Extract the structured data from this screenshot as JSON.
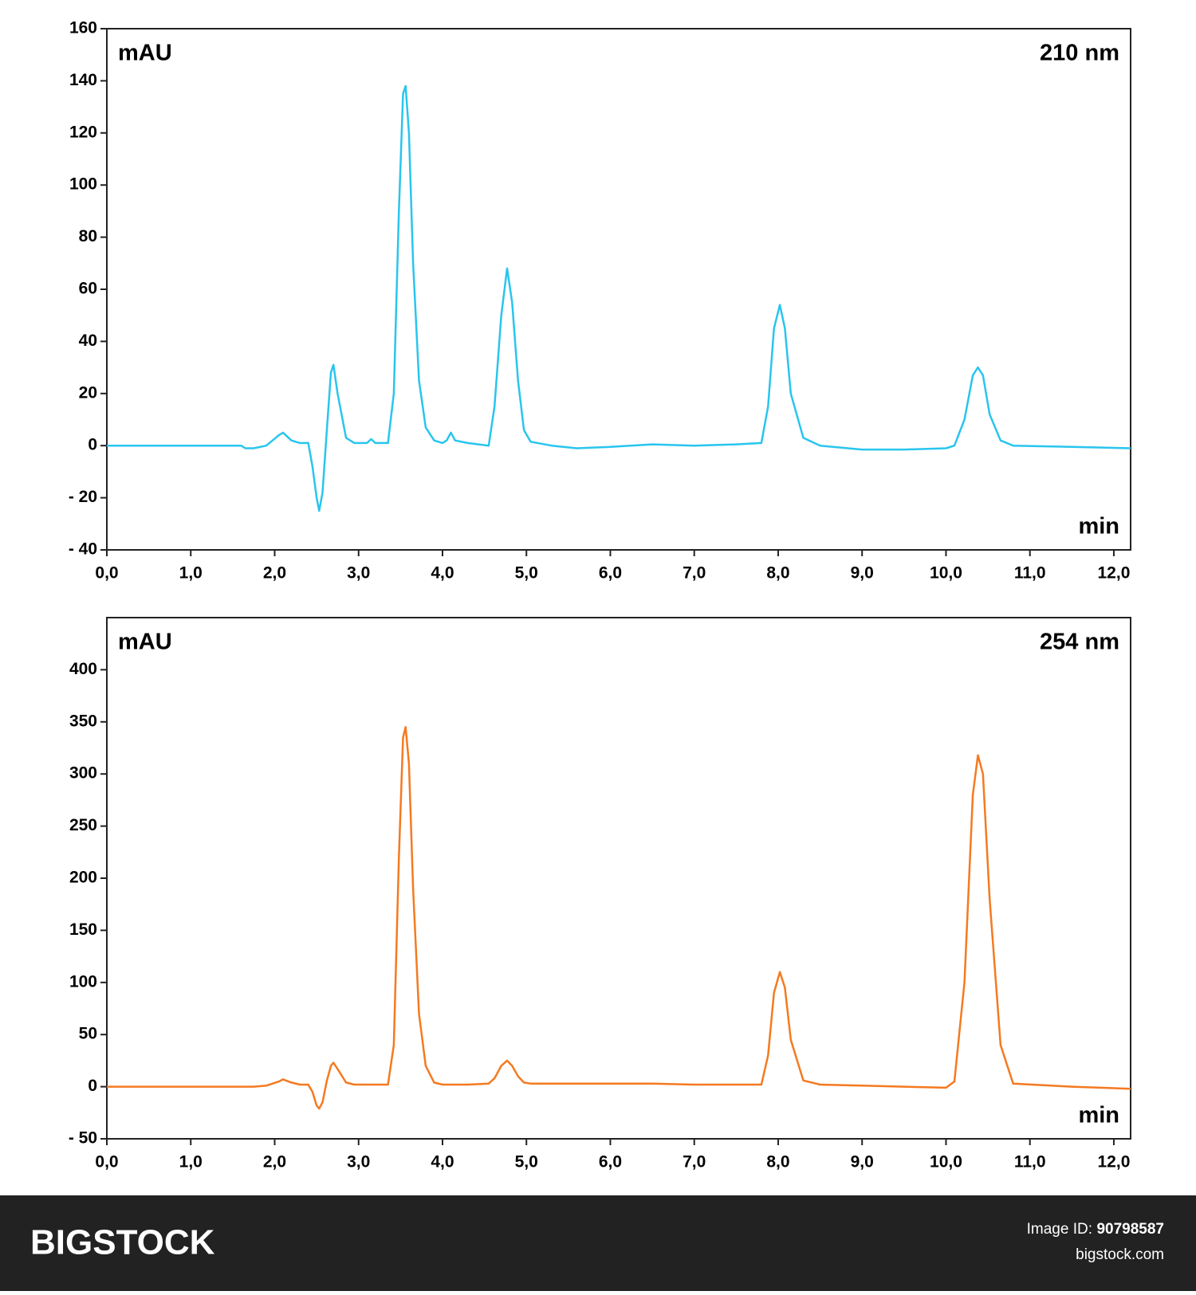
{
  "chart_data": [
    {
      "type": "line",
      "y_label": "mAU",
      "annotation": "210 nm",
      "x_label": "min",
      "color": "#29c5ee",
      "x": [
        0,
        1.6,
        1.65,
        1.75,
        1.9,
        2.05,
        2.1,
        2.2,
        2.3,
        2.4,
        2.45,
        2.5,
        2.53,
        2.57,
        2.62,
        2.67,
        2.7,
        2.75,
        2.85,
        2.95,
        3.1,
        3.15,
        3.2,
        3.35,
        3.42,
        3.48,
        3.53,
        3.56,
        3.6,
        3.65,
        3.72,
        3.8,
        3.9,
        4.0,
        4.05,
        4.1,
        4.15,
        4.3,
        4.55,
        4.62,
        4.7,
        4.77,
        4.83,
        4.9,
        4.97,
        5.05,
        5.3,
        5.6,
        6.0,
        6.5,
        7.0,
        7.5,
        7.8,
        7.88,
        7.95,
        8.02,
        8.08,
        8.15,
        8.3,
        8.5,
        9.0,
        9.5,
        10.0,
        10.1,
        10.22,
        10.32,
        10.38,
        10.44,
        10.52,
        10.65,
        10.8,
        11.5,
        12.2
      ],
      "values": [
        0,
        0,
        -1,
        -1,
        0,
        4,
        5,
        2,
        1,
        1,
        -8,
        -20,
        -25,
        -18,
        5,
        28,
        31,
        20,
        3,
        1,
        1,
        2.5,
        1,
        1,
        20,
        90,
        135,
        138,
        120,
        70,
        25,
        7,
        2,
        1,
        2,
        5,
        2,
        1,
        0,
        15,
        50,
        68,
        55,
        25,
        6,
        1.5,
        0,
        -1,
        -0.5,
        0.5,
        0,
        0.5,
        1,
        15,
        45,
        54,
        45,
        20,
        3,
        0,
        -1.5,
        -1.5,
        -1,
        0,
        10,
        27,
        30,
        27,
        12,
        2,
        0,
        -0.5,
        -1
      ],
      "xlim": [
        0,
        12.2
      ],
      "ylim": [
        -40,
        160
      ],
      "xticks": [
        {
          "value": 0,
          "label": "0,0"
        },
        {
          "value": 1,
          "label": "1,0"
        },
        {
          "value": 2,
          "label": "2,0"
        },
        {
          "value": 3,
          "label": "3,0"
        },
        {
          "value": 4,
          "label": "4,0"
        },
        {
          "value": 5,
          "label": "5,0"
        },
        {
          "value": 6,
          "label": "6,0"
        },
        {
          "value": 7,
          "label": "7,0"
        },
        {
          "value": 8,
          "label": "8,0"
        },
        {
          "value": 9,
          "label": "9,0"
        },
        {
          "value": 10,
          "label": "10,0"
        },
        {
          "value": 11,
          "label": "11,0"
        },
        {
          "value": 12,
          "label": "12,0"
        }
      ],
      "yticks": [
        {
          "value": -40,
          "label": "- 40"
        },
        {
          "value": -20,
          "label": "- 20"
        },
        0,
        20,
        40,
        60,
        80,
        100,
        120,
        140,
        160
      ]
    },
    {
      "type": "line",
      "y_label": "mAU",
      "annotation": "254 nm",
      "x_label": "min",
      "color": "#f47a20",
      "x": [
        0,
        1.6,
        1.65,
        1.75,
        1.9,
        2.05,
        2.1,
        2.2,
        2.3,
        2.4,
        2.45,
        2.5,
        2.53,
        2.57,
        2.62,
        2.67,
        2.7,
        2.75,
        2.85,
        2.95,
        3.1,
        3.15,
        3.2,
        3.35,
        3.42,
        3.48,
        3.53,
        3.56,
        3.6,
        3.65,
        3.72,
        3.8,
        3.9,
        4.0,
        4.05,
        4.1,
        4.15,
        4.3,
        4.55,
        4.62,
        4.7,
        4.77,
        4.83,
        4.9,
        4.97,
        5.05,
        5.3,
        5.6,
        6.0,
        6.5,
        7.0,
        7.5,
        7.8,
        7.88,
        7.95,
        8.02,
        8.08,
        8.15,
        8.3,
        8.5,
        9.0,
        9.5,
        10.0,
        10.1,
        10.22,
        10.32,
        10.38,
        10.44,
        10.52,
        10.65,
        10.8,
        11.5,
        12.2
      ],
      "values": [
        0,
        0,
        0,
        0,
        1,
        5,
        7,
        4,
        2,
        2,
        -5,
        -18,
        -21,
        -15,
        5,
        20,
        23,
        17,
        4,
        2,
        2,
        2,
        2,
        2,
        40,
        220,
        335,
        345,
        310,
        190,
        70,
        20,
        4,
        2,
        2,
        2,
        2,
        2,
        3,
        8,
        20,
        25,
        20,
        10,
        4,
        3,
        3,
        3,
        3,
        3,
        2,
        2,
        2,
        30,
        90,
        110,
        95,
        45,
        6,
        2,
        1,
        0,
        -1,
        5,
        100,
        280,
        318,
        300,
        180,
        40,
        3,
        0,
        -2
      ],
      "xlim": [
        0,
        12.2
      ],
      "ylim": [
        -50,
        450
      ],
      "xticks": [
        {
          "value": 0,
          "label": "0,0"
        },
        {
          "value": 1,
          "label": "1,0"
        },
        {
          "value": 2,
          "label": "2,0"
        },
        {
          "value": 3,
          "label": "3,0"
        },
        {
          "value": 4,
          "label": "4,0"
        },
        {
          "value": 5,
          "label": "5,0"
        },
        {
          "value": 6,
          "label": "6,0"
        },
        {
          "value": 7,
          "label": "7,0"
        },
        {
          "value": 8,
          "label": "8,0"
        },
        {
          "value": 9,
          "label": "9,0"
        },
        {
          "value": 10,
          "label": "10,0"
        },
        {
          "value": 11,
          "label": "11,0"
        },
        {
          "value": 12,
          "label": "12,0"
        }
      ],
      "yticks": [
        {
          "value": -50,
          "label": "- 50"
        },
        0,
        50,
        100,
        150,
        200,
        250,
        300,
        350,
        400
      ]
    }
  ],
  "footer": {
    "brand": "BIGSTOCK",
    "id_label": "Image ID:",
    "id": "90798587",
    "site": "bigstock.com"
  }
}
